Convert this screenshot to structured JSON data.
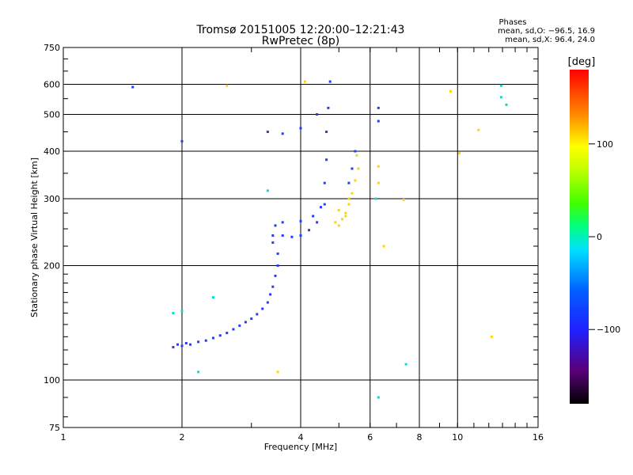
{
  "chart_data": {
    "type": "scatter",
    "title": "Tromsø 20151005 12:20:00–12:21:43",
    "subtitle": "RwPretec (8p)",
    "xlabel": "Frequency [MHz]",
    "ylabel": "Stationary phase Virtual Height [km]",
    "x_scale": "log",
    "y_scale": "log",
    "xlim": [
      1,
      16
    ],
    "ylim": [
      75,
      750
    ],
    "x_ticks": [
      1,
      2,
      4,
      6,
      8,
      10,
      16
    ],
    "x_tick_labels": [
      "1",
      "2",
      "4",
      "6",
      "8",
      "10",
      "16"
    ],
    "y_ticks": [
      75,
      100,
      200,
      300,
      400,
      500,
      600,
      750
    ],
    "y_tick_labels": [
      "75",
      "100",
      "200",
      "300",
      "400",
      "500",
      "600",
      "750"
    ],
    "grid": true,
    "phases_box": {
      "title": "Phases",
      "line_o": "mean, sd,O: −96.5, 16.9",
      "line_x": "mean, sd,X:  96.4, 24.0"
    },
    "colorbar": {
      "label": "[deg]",
      "range": [
        -180,
        180
      ],
      "ticks": [
        100,
        0,
        -100
      ],
      "tick_labels": [
        "100",
        "0",
        "−100"
      ],
      "colormap": "rainbow"
    },
    "trace_color_phase_deg": {
      "o_mode": -96.5,
      "x_mode": 96.4
    },
    "series": [
      {
        "points": [
          [
            1.9,
            122
          ],
          [
            1.95,
            124
          ],
          [
            2.0,
            123
          ],
          [
            2.05,
            125
          ],
          [
            2.1,
            124
          ],
          [
            2.2,
            126
          ],
          [
            2.3,
            127
          ],
          [
            2.4,
            129
          ],
          [
            2.5,
            131
          ],
          [
            2.6,
            133
          ],
          [
            2.7,
            136
          ],
          [
            2.8,
            139
          ],
          [
            2.9,
            142
          ],
          [
            3.0,
            145
          ],
          [
            3.1,
            149
          ],
          [
            3.2,
            154
          ],
          [
            3.3,
            160
          ],
          [
            3.35,
            168
          ],
          [
            3.4,
            176
          ],
          [
            3.45,
            188
          ],
          [
            3.5,
            200
          ],
          [
            3.5,
            215
          ],
          [
            3.4,
            230
          ],
          [
            3.4,
            240
          ],
          [
            3.45,
            255
          ],
          [
            3.6,
            240
          ],
          [
            3.8,
            238
          ],
          [
            4.0,
            240
          ],
          [
            4.2,
            248
          ],
          [
            4.4,
            260
          ],
          [
            4.6,
            290
          ],
          [
            4.6,
            330
          ],
          [
            4.65,
            380
          ],
          [
            4.65,
            450
          ],
          [
            4.7,
            520
          ],
          [
            4.75,
            610
          ],
          [
            3.3,
            450
          ],
          [
            3.6,
            445
          ],
          [
            4.0,
            460
          ],
          [
            4.4,
            500
          ],
          [
            3.6,
            260
          ],
          [
            4.0,
            262
          ],
          [
            4.3,
            270
          ],
          [
            4.5,
            285
          ],
          [
            5.3,
            330
          ],
          [
            5.4,
            360
          ],
          [
            5.5,
            400
          ],
          [
            6.3,
            520
          ],
          [
            6.3,
            480
          ],
          [
            1.5,
            590
          ],
          [
            2.0,
            425
          ]
        ]
      },
      {
        "points": [
          [
            5.0,
            255
          ],
          [
            5.1,
            265
          ],
          [
            5.2,
            275
          ],
          [
            5.3,
            290
          ],
          [
            5.4,
            310
          ],
          [
            5.5,
            335
          ],
          [
            5.6,
            360
          ],
          [
            5.55,
            390
          ],
          [
            5.2,
            270
          ],
          [
            5.0,
            280
          ],
          [
            4.9,
            260
          ],
          [
            5.3,
            300
          ],
          [
            3.5,
            105
          ],
          [
            2.6,
            595
          ],
          [
            9.6,
            575
          ],
          [
            10.1,
            395
          ],
          [
            11.3,
            455
          ],
          [
            12.2,
            130
          ],
          [
            7.3,
            298
          ],
          [
            6.3,
            365
          ],
          [
            6.3,
            330
          ],
          [
            6.5,
            225
          ],
          [
            4.1,
            610
          ]
        ]
      },
      {
        "points": [
          [
            7.4,
            110
          ],
          [
            6.3,
            90
          ],
          [
            1.9,
            150
          ],
          [
            2.0,
            152
          ],
          [
            2.4,
            165
          ],
          [
            3.3,
            315
          ],
          [
            12.9,
            555
          ],
          [
            13.3,
            530
          ],
          [
            2.2,
            105
          ],
          [
            12.9,
            595
          ],
          [
            6.2,
            300
          ]
        ]
      }
    ]
  }
}
